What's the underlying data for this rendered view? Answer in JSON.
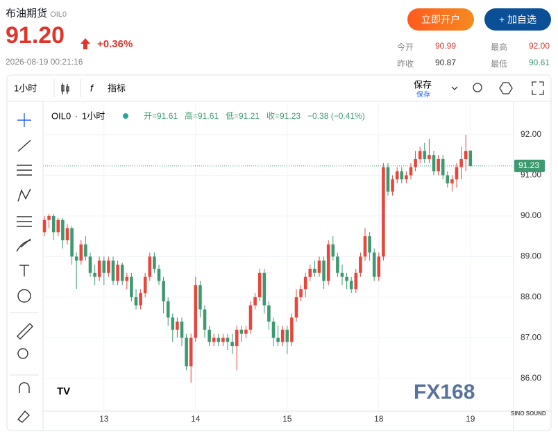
{
  "header": {
    "title": "布油期货",
    "symbol": "OIL0",
    "price": "91.20",
    "change": "+0.36%",
    "time": "2026-08-19 00:21:16",
    "buttons": [
      "立即开户",
      "+ 加自选"
    ],
    "stats": [
      {
        "label": "今开",
        "value": "90.99"
      },
      {
        "label": "最高",
        "value": "92.00"
      },
      {
        "label": "昨收",
        "value": "90.87"
      },
      {
        "label": "最低",
        "value": "90.61"
      }
    ]
  },
  "toolbar": {
    "interval": "1小时",
    "indicators": "指标",
    "save": "保存",
    "save_sub": "保存"
  },
  "legend": {
    "symbol": "OIL0",
    "interval": "1小时",
    "open": "开=91.61",
    "high": "高=91.61",
    "low": "低=91.21",
    "close": "收=91.23",
    "change": "−0.38 (−0.41%)"
  },
  "watermark": {
    "logo": "FX168",
    "brand": "SINO SOUND"
  },
  "chart_data": {
    "type": "candlestick",
    "up_color": "#e8453c",
    "down_color": "#3d9a70",
    "categories": [
      null,
      null,
      null,
      null,
      null,
      null,
      null,
      null,
      null,
      null,
      null,
      null,
      null,
      "13",
      null,
      null,
      null,
      null,
      null,
      null,
      null,
      null,
      null,
      null,
      null,
      null,
      null,
      null,
      null,
      null,
      null,
      null,
      null,
      "14",
      null,
      null,
      null,
      null,
      null,
      null,
      null,
      null,
      null,
      null,
      null,
      null,
      null,
      null,
      null,
      null,
      null,
      null,
      null,
      "15",
      null,
      null,
      null,
      null,
      null,
      null,
      null,
      null,
      null,
      null,
      null,
      null,
      null,
      null,
      null,
      null,
      null,
      null,
      null,
      "18",
      null,
      null,
      null,
      null,
      null,
      null,
      null,
      null,
      null,
      null,
      null,
      null,
      null,
      null,
      null,
      null,
      null,
      null,
      null,
      "19"
    ],
    "open": [
      89.6,
      89.9,
      90.0,
      89.6,
      89.9,
      89.4,
      89.7,
      89.0,
      88.9,
      89.3,
      89.0,
      88.6,
      88.5,
      88.9,
      88.6,
      88.9,
      88.4,
      88.8,
      88.4,
      88.5,
      88.0,
      87.8,
      88.1,
      88.5,
      89.0,
      88.7,
      88.4,
      87.9,
      87.5,
      87.2,
      87.4,
      87.0,
      86.3,
      87.0,
      88.3,
      87.7,
      87.2,
      86.9,
      87.0,
      86.9,
      87.0,
      86.9,
      86.8,
      87.2,
      87.1,
      87.2,
      87.8,
      88.0,
      88.6,
      87.8,
      87.4,
      87.0,
      86.9,
      87.2,
      86.9,
      87.5,
      88.0,
      88.2,
      88.5,
      88.7,
      88.6,
      88.9,
      88.4,
      89.3,
      89.0,
      88.6,
      88.5,
      88.4,
      88.2,
      88.6,
      89.0,
      89.5,
      89.1,
      88.5,
      89.0,
      91.2,
      90.6,
      90.9,
      91.1,
      90.9,
      91.0,
      91.2,
      91.4,
      91.6,
      91.4,
      91.5,
      91.1,
      91.4,
      91.0,
      90.8,
      90.9,
      91.2,
      91.4,
      91.61
    ],
    "high": [
      90.0,
      90.05,
      90.05,
      89.95,
      89.95,
      89.8,
      89.75,
      89.1,
      89.4,
      89.5,
      89.1,
      88.8,
      89.0,
      89.0,
      89.0,
      89.0,
      88.9,
      88.85,
      88.6,
      88.6,
      88.2,
      88.2,
      88.6,
      89.1,
      89.1,
      88.8,
      88.5,
      88.0,
      87.6,
      87.5,
      87.5,
      87.1,
      87.1,
      88.5,
      88.4,
      87.8,
      87.3,
      87.1,
      87.1,
      87.1,
      87.1,
      87.1,
      87.3,
      87.3,
      87.3,
      87.9,
      88.1,
      88.7,
      88.7,
      87.9,
      87.5,
      87.3,
      87.3,
      87.3,
      87.6,
      88.2,
      88.3,
      88.6,
      88.8,
      88.9,
      89.0,
      89.0,
      89.4,
      89.5,
      89.1,
      88.8,
      88.6,
      88.5,
      88.7,
      89.1,
      89.7,
      89.6,
      89.2,
      89.1,
      91.3,
      91.3,
      91.0,
      91.2,
      91.2,
      91.1,
      91.3,
      91.6,
      91.7,
      91.8,
      91.9,
      91.6,
      91.5,
      91.5,
      91.1,
      91.0,
      91.3,
      91.7,
      92.0,
      91.61
    ],
    "low": [
      89.5,
      89.7,
      89.4,
      89.5,
      89.2,
      89.3,
      88.8,
      88.2,
      88.8,
      88.9,
      88.5,
      88.3,
      88.4,
      88.3,
      88.5,
      88.3,
      88.3,
      88.3,
      88.2,
      87.9,
      87.7,
      87.7,
      88.0,
      88.4,
      88.6,
      88.3,
      87.6,
      87.3,
      86.9,
      87.0,
      86.8,
      86.2,
      85.9,
      86.9,
      87.5,
      87.0,
      86.8,
      86.8,
      86.8,
      86.8,
      86.7,
      86.6,
      86.2,
      86.9,
      87.0,
      87.1,
      87.7,
      87.9,
      87.6,
      87.2,
      86.8,
      86.8,
      86.8,
      86.6,
      86.8,
      87.4,
      87.9,
      88.0,
      88.4,
      88.5,
      88.5,
      88.2,
      88.3,
      88.9,
      88.5,
      88.3,
      88.2,
      88.1,
      88.1,
      88.5,
      88.9,
      88.9,
      88.4,
      88.4,
      88.9,
      90.5,
      90.5,
      90.8,
      90.8,
      90.8,
      90.9,
      91.1,
      91.3,
      91.3,
      91.3,
      91.0,
      91.0,
      90.9,
      90.7,
      90.6,
      90.7,
      90.9,
      91.1,
      91.21
    ],
    "close": [
      89.9,
      90.0,
      89.6,
      89.9,
      89.4,
      89.7,
      89.0,
      88.9,
      89.3,
      89.0,
      88.6,
      88.5,
      88.9,
      88.6,
      88.9,
      88.4,
      88.8,
      88.4,
      88.5,
      88.0,
      87.8,
      88.1,
      88.5,
      89.0,
      88.7,
      88.4,
      87.9,
      87.5,
      87.2,
      87.4,
      87.0,
      86.3,
      87.0,
      88.3,
      87.7,
      87.2,
      86.9,
      87.0,
      86.9,
      87.0,
      86.9,
      86.8,
      87.2,
      87.1,
      87.2,
      87.8,
      88.0,
      88.6,
      87.8,
      87.4,
      87.0,
      86.9,
      87.2,
      86.9,
      87.5,
      88.0,
      88.2,
      88.5,
      88.7,
      88.6,
      88.9,
      88.4,
      89.3,
      89.0,
      88.6,
      88.5,
      88.4,
      88.2,
      88.6,
      89.0,
      89.5,
      89.1,
      88.5,
      89.0,
      91.2,
      90.6,
      90.9,
      91.1,
      90.9,
      91.0,
      91.2,
      91.4,
      91.6,
      91.4,
      91.5,
      91.1,
      91.4,
      91.0,
      90.8,
      90.9,
      91.2,
      91.4,
      91.6,
      91.23
    ],
    "ylim": [
      85.23,
      92.75
    ],
    "yticks": [
      {
        "value": 86,
        "label": "86.00"
      },
      {
        "value": 87,
        "label": "87.00"
      },
      {
        "value": 88,
        "label": "88.00"
      },
      {
        "value": 89,
        "label": "89.00"
      },
      {
        "value": 90,
        "label": "90.00"
      },
      {
        "value": 91,
        "label": "91.00"
      },
      {
        "value": 92,
        "label": "92.00"
      }
    ],
    "grid": true
  }
}
